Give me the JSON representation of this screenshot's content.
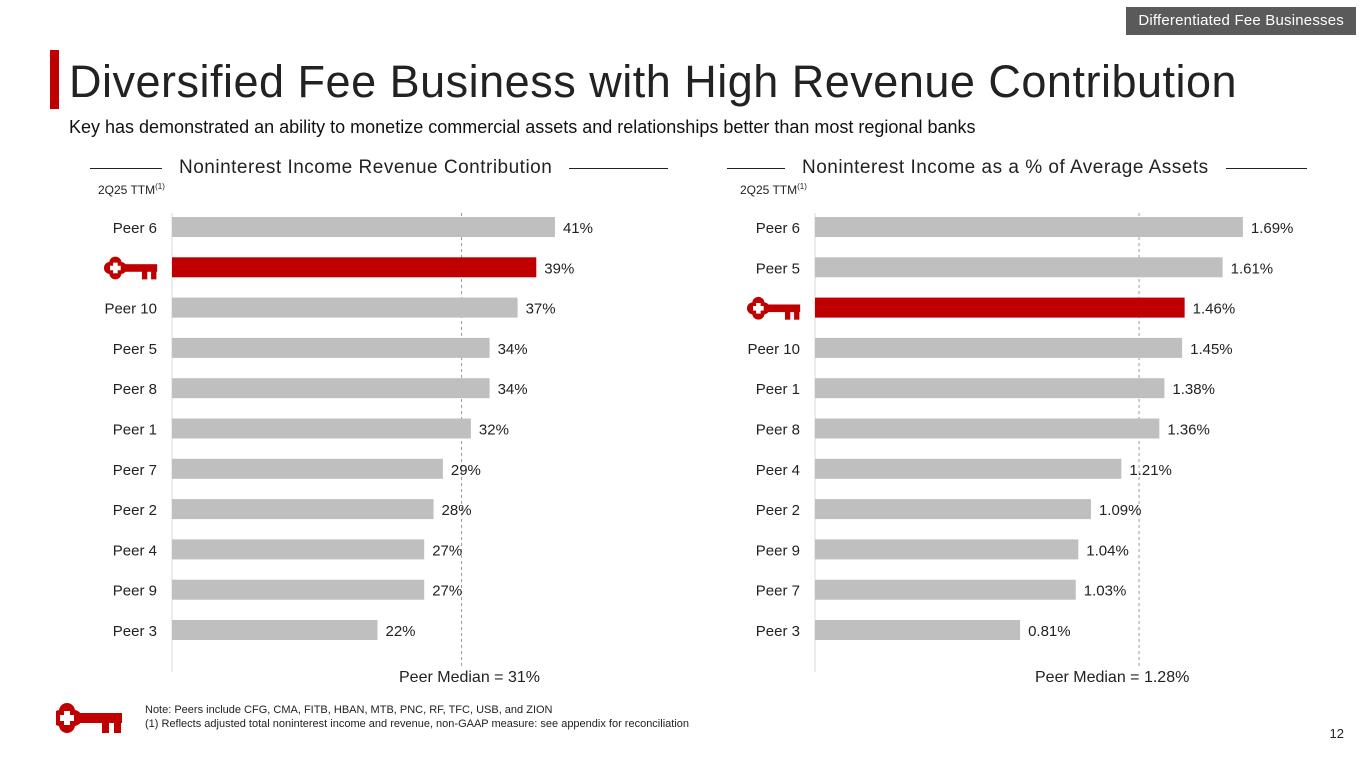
{
  "header": {
    "tag": "Differentiated Fee Businesses",
    "title": "Diversified Fee Business with High Revenue Contribution",
    "subtitle": "Key has demonstrated an ability to monetize commercial assets and relationships better than most regional banks"
  },
  "colors": {
    "accent": "#c00000",
    "bar": "#bfbfbf",
    "highlight": "#c00000"
  },
  "chart_data": [
    {
      "type": "bar",
      "orientation": "horizontal",
      "title": "Noninterest Income Revenue Contribution",
      "period_label": "2Q25 TTM",
      "period_footnote": "(1)",
      "categories": [
        "Peer 6",
        "KEY",
        "Peer 10",
        "Peer 5",
        "Peer 8",
        "Peer 1",
        "Peer 7",
        "Peer 2",
        "Peer 4",
        "Peer 9",
        "Peer 3"
      ],
      "values": [
        41,
        39,
        37,
        34,
        34,
        32,
        29,
        28,
        27,
        27,
        22
      ],
      "value_labels": [
        "41%",
        "39%",
        "37%",
        "34%",
        "34%",
        "32%",
        "29%",
        "28%",
        "27%",
        "27%",
        "22%"
      ],
      "highlight_category": "KEY",
      "highlight_icon": "key-logo-icon",
      "xlim": [
        0,
        52
      ],
      "reference_line": {
        "value": 31,
        "label": "Peer Median = 31%"
      }
    },
    {
      "type": "bar",
      "orientation": "horizontal",
      "title": "Noninterest Income as a % of Average Assets",
      "period_label": "2Q25 TTM",
      "period_footnote": "(1)",
      "categories": [
        "Peer 6",
        "Peer 5",
        "KEY",
        "Peer 10",
        "Peer 1",
        "Peer 8",
        "Peer 4",
        "Peer 2",
        "Peer 9",
        "Peer 7",
        "Peer 3"
      ],
      "values": [
        1.69,
        1.61,
        1.46,
        1.45,
        1.38,
        1.36,
        1.21,
        1.09,
        1.04,
        1.03,
        0.81
      ],
      "value_labels": [
        "1.69%",
        "1.61%",
        "1.46%",
        "1.45%",
        "1.38%",
        "1.36%",
        "1.21%",
        "1.09%",
        "1.04%",
        "1.03%",
        "0.81%"
      ],
      "highlight_category": "KEY",
      "highlight_icon": "key-logo-icon",
      "xlim": [
        0,
        2.1
      ],
      "reference_line": {
        "value": 1.28,
        "label": "Peer Median = 1.28%"
      }
    }
  ],
  "footer": {
    "note": "Note: Peers include CFG, CMA, FITB, HBAN, MTB, PNC, RF, TFC, USB, and ZION",
    "footnote_1": "(1) Reflects adjusted total noninterest income and revenue, non-GAAP measure: see appendix for reconciliation",
    "page_number": "12"
  }
}
